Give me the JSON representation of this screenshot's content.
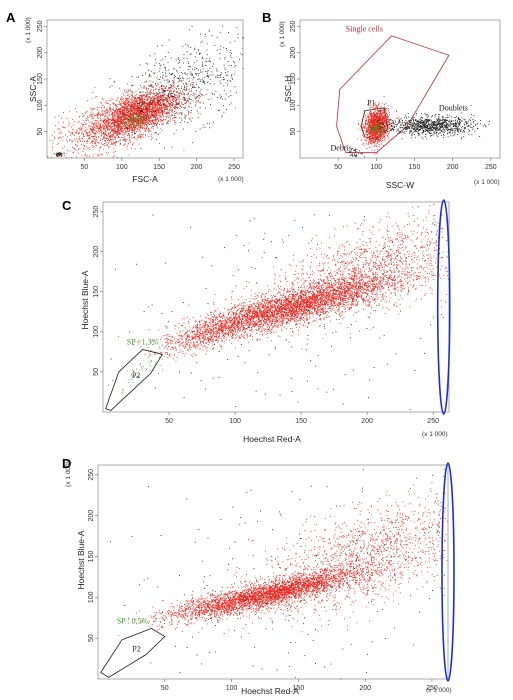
{
  "chart_data": [
    {
      "type": "scatter",
      "panel": "A",
      "xlabel": "FSC-A",
      "ylabel": "SSC-A",
      "x_multiplier": "(x 1 000)",
      "y_multiplier": "(x 1 000)",
      "xlim": [
        0,
        262
      ],
      "ylim": [
        0,
        262
      ],
      "xticks": [
        50,
        100,
        150,
        200,
        250
      ],
      "yticks": [
        50,
        100,
        150,
        200,
        250
      ],
      "series": [
        {
          "color": "#e8261c",
          "center": [
            120,
            85
          ],
          "spread": [
            30,
            24
          ],
          "corr": 0.6,
          "count": 2600
        },
        {
          "color": "#e8261c",
          "center": [
            80,
            55
          ],
          "spread": [
            40,
            30
          ],
          "corr": 0.5,
          "count": 700
        },
        {
          "color": "#1a1a1a",
          "center": [
            185,
            140
          ],
          "spread": [
            45,
            45
          ],
          "corr": 0.5,
          "count": 650
        },
        {
          "color": "#3f9a2e",
          "center": [
            115,
            72
          ],
          "spread": [
            9,
            7
          ],
          "corr": 0.3,
          "count": 90
        },
        {
          "color": "#1a1a1a",
          "center": [
            15,
            8
          ],
          "spread": [
            3,
            2
          ],
          "corr": 0,
          "count": 40
        }
      ]
    },
    {
      "type": "scatter",
      "panel": "B",
      "xlabel": "SSC-W",
      "ylabel": "SSC-H",
      "x_multiplier": "(x 1 000)",
      "y_multiplier": "(x 1 000)",
      "xlim": [
        0,
        262
      ],
      "ylim": [
        0,
        262
      ],
      "xticks": [
        50,
        100,
        150,
        200,
        250
      ],
      "yticks": [
        50,
        100,
        150,
        200,
        250
      ],
      "gates": [
        {
          "label": "Single cells",
          "color": "#c0243a",
          "vertices": [
            [
              52,
              130
            ],
            [
              120,
              232
            ],
            [
              195,
              195
            ],
            [
              140,
              60
            ],
            [
              100,
              10
            ],
            [
              60,
              10
            ],
            [
              48,
              60
            ]
          ]
        },
        {
          "label": "P1",
          "color": "#1a1a1a",
          "vertices": [
            [
              85,
              90
            ],
            [
              110,
              95
            ],
            [
              115,
              55
            ],
            [
              100,
              35
            ],
            [
              85,
              40
            ],
            [
              80,
              60
            ]
          ]
        }
      ],
      "annotations": [
        {
          "text": "Doublets",
          "x": 182,
          "y": 90,
          "color": "#1a1a1a"
        },
        {
          "text": "Debris",
          "x": 40,
          "y": 14,
          "color": "#1a1a1a"
        }
      ],
      "series": [
        {
          "color": "#e8261c",
          "center": [
            100,
            62
          ],
          "spread": [
            8,
            16
          ],
          "corr": 0.2,
          "count": 1400
        },
        {
          "color": "#1a1a1a",
          "center": [
            170,
            62
          ],
          "spread": [
            28,
            9
          ],
          "corr": 0,
          "count": 900
        },
        {
          "color": "#3f9a2e",
          "center": [
            100,
            58
          ],
          "spread": [
            4,
            6
          ],
          "corr": 0,
          "count": 60
        },
        {
          "color": "#1a1a1a",
          "center": [
            72,
            10
          ],
          "spread": [
            5,
            4
          ],
          "corr": 0,
          "count": 40
        }
      ]
    },
    {
      "type": "scatter",
      "panel": "C",
      "xlabel": "Hoechst Red-A",
      "ylabel": "Hoechst Blue-A",
      "x_multiplier": "(x 1 000)",
      "y_multiplier": "(x 1 000)",
      "xlim": [
        0,
        262
      ],
      "ylim": [
        0,
        262
      ],
      "xticks": [
        50,
        100,
        150,
        200,
        250
      ],
      "yticks": [
        50,
        100,
        150,
        200,
        250
      ],
      "gates": [
        {
          "label": "P2",
          "color": "#1a1a1a",
          "vertices": [
            [
              2,
              4
            ],
            [
              12,
              50
            ],
            [
              30,
              78
            ],
            [
              45,
              72
            ],
            [
              36,
              48
            ],
            [
              6,
              2
            ]
          ]
        }
      ],
      "annotations": [
        {
          "text": "SP : 1,3%",
          "x": 18,
          "y": 84,
          "color": "#3f9a2e"
        }
      ],
      "highlight_ellipse": {
        "color": "#1b2fd4",
        "center_x": 258,
        "rx": 4,
        "y_range": [
          0,
          262
        ]
      },
      "series": [
        {
          "color": "#e8261c",
          "center": [
            140,
            130
          ],
          "spread": [
            38,
            20
          ],
          "corr": 0.85,
          "count": 3800
        },
        {
          "color": "#e8261c",
          "center": [
            200,
            175
          ],
          "spread": [
            38,
            32
          ],
          "corr": 0.6,
          "count": 1500
        },
        {
          "color": "#e8261c",
          "center": [
            75,
            95
          ],
          "spread": [
            15,
            12
          ],
          "corr": 0.7,
          "count": 400
        },
        {
          "color": "#3f9a2e",
          "center": [
            28,
            52
          ],
          "spread": [
            12,
            14
          ],
          "corr": 0.8,
          "count": 40
        },
        {
          "color": "#1a1a1a",
          "center": [
            150,
            130
          ],
          "spread": [
            80,
            70
          ],
          "corr": 0.3,
          "count": 260
        }
      ]
    },
    {
      "type": "scatter",
      "panel": "D",
      "xlabel": "Hoechst Red-A",
      "ylabel": "Hoechst Blue-A",
      "x_multiplier": "(x 1 000)",
      "y_multiplier": "(x 1 000)",
      "xlim": [
        0,
        262
      ],
      "ylim": [
        0,
        262
      ],
      "xticks": [
        50,
        100,
        150,
        200,
        250
      ],
      "yticks": [
        50,
        100,
        150,
        200,
        250
      ],
      "gates": [
        {
          "label": "P2",
          "color": "#1a1a1a",
          "vertices": [
            [
              2,
              8
            ],
            [
              18,
              48
            ],
            [
              40,
              62
            ],
            [
              50,
              52
            ],
            [
              36,
              30
            ],
            [
              8,
              2
            ]
          ]
        }
      ],
      "annotations": [
        {
          "text": "SP : 0,5%",
          "x": 14,
          "y": 68,
          "color": "#3f9a2e"
        }
      ],
      "highlight_ellipse": {
        "color": "#1b2fd4",
        "center_x": 262,
        "rx": 4,
        "y_range": [
          0,
          262
        ]
      },
      "series": [
        {
          "color": "#e8261c",
          "center": [
            130,
            105
          ],
          "spread": [
            30,
            14
          ],
          "corr": 0.85,
          "count": 3000
        },
        {
          "color": "#e8261c",
          "center": [
            200,
            150
          ],
          "spread": [
            40,
            35
          ],
          "corr": 0.6,
          "count": 1600
        },
        {
          "color": "#e8261c",
          "center": [
            75,
            88
          ],
          "spread": [
            18,
            10
          ],
          "corr": 0.7,
          "count": 400
        },
        {
          "color": "#1a1a1a",
          "center": [
            150,
            120
          ],
          "spread": [
            80,
            70
          ],
          "corr": 0.3,
          "count": 240
        }
      ]
    }
  ],
  "panel_labels": [
    "A",
    "B",
    "C",
    "D"
  ]
}
